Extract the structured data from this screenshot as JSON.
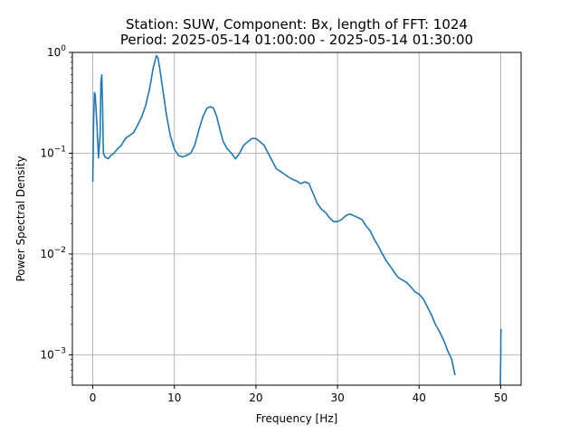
{
  "chart_data": {
    "type": "line",
    "title_line1": "Station: SUW, Component: Bx, length of FFT: 1024",
    "title_line2": "Period: 2025-05-14 01:00:00 - 2025-05-14 01:30:00",
    "xlabel": "Frequency [Hz]",
    "ylabel": "Power Spectral Density",
    "xlim": [
      -2.5,
      52.5
    ],
    "ylim": [
      0.0005,
      1
    ],
    "yscale": "log",
    "grid": true,
    "color": "#1f77b4",
    "x_ticks": [
      {
        "value": 0,
        "label": "0"
      },
      {
        "value": 10,
        "label": "10"
      },
      {
        "value": 20,
        "label": "20"
      },
      {
        "value": 30,
        "label": "30"
      },
      {
        "value": 40,
        "label": "40"
      },
      {
        "value": 50,
        "label": "50"
      }
    ],
    "y_ticks": [
      {
        "value": 1,
        "base": "10",
        "exp": "0"
      },
      {
        "value": 0.1,
        "base": "10",
        "exp": "−1"
      },
      {
        "value": 0.01,
        "base": "10",
        "exp": "−2"
      },
      {
        "value": 0.001,
        "base": "10",
        "exp": "−3"
      }
    ],
    "series": [
      {
        "x": [
          0,
          0.1,
          0.2,
          0.3,
          0.5,
          0.7,
          0.9,
          1.0,
          1.1,
          1.2,
          1.3,
          1.5,
          1.7,
          1.9,
          2.2,
          2.6,
          3.0,
          3.5,
          4.0,
          4.5,
          5.0,
          5.5,
          6.0,
          6.5,
          7.0,
          7.4,
          7.8,
          8.0,
          8.3,
          8.6,
          9.0,
          9.5,
          10.0,
          10.5,
          11.0,
          11.5,
          12.0,
          12.5,
          13.0,
          13.5,
          14.0,
          14.4,
          14.8,
          15.2,
          15.6,
          16.0,
          16.5,
          17.0,
          17.5,
          18.0,
          18.5,
          19.0,
          19.5,
          20.0,
          20.5,
          21.0,
          21.5,
          22.0,
          22.5,
          23.0,
          23.5,
          24.0,
          24.5,
          25.0,
          25.5,
          26.0,
          26.5,
          27.0,
          27.5,
          28.0,
          28.5,
          29.0,
          29.5,
          30.0,
          30.5,
          31.0,
          31.5,
          32.0,
          32.5,
          33.0,
          33.5,
          34.0,
          34.5,
          35.0,
          35.5,
          36.0,
          36.5,
          37.0,
          37.5,
          38.0,
          38.5,
          39.0,
          39.5,
          40.0,
          40.5,
          41.0,
          41.5,
          42.0,
          42.5,
          43.0,
          43.5,
          44.0,
          44.2,
          44.4
        ],
        "y": [
          0.052,
          0.2,
          0.4,
          0.38,
          0.2,
          0.09,
          0.15,
          0.5,
          0.6,
          0.3,
          0.1,
          0.092,
          0.09,
          0.088,
          0.095,
          0.1,
          0.11,
          0.12,
          0.14,
          0.15,
          0.16,
          0.19,
          0.23,
          0.3,
          0.45,
          0.7,
          0.93,
          0.88,
          0.62,
          0.42,
          0.25,
          0.15,
          0.11,
          0.095,
          0.092,
          0.095,
          0.1,
          0.12,
          0.17,
          0.23,
          0.28,
          0.29,
          0.28,
          0.23,
          0.17,
          0.13,
          0.11,
          0.1,
          0.088,
          0.1,
          0.12,
          0.13,
          0.14,
          0.14,
          0.13,
          0.12,
          0.1,
          0.084,
          0.07,
          0.066,
          0.062,
          0.058,
          0.055,
          0.053,
          0.05,
          0.052,
          0.05,
          0.04,
          0.032,
          0.028,
          0.026,
          0.023,
          0.021,
          0.021,
          0.022,
          0.024,
          0.025,
          0.024,
          0.023,
          0.022,
          0.019,
          0.017,
          0.014,
          0.012,
          0.01,
          0.0085,
          0.0075,
          0.0065,
          0.0058,
          0.0055,
          0.0052,
          0.0047,
          0.0042,
          0.004,
          0.0036,
          0.003,
          0.0025,
          0.002,
          0.0017,
          0.0014,
          0.0011,
          0.0009,
          0.00075,
          0.00063
        ]
      },
      {
        "x": [
          49.95,
          50.0,
          50.02,
          50.05
        ],
        "y": [
          0.0005,
          0.0009,
          0.0016,
          0.0018
        ]
      }
    ]
  }
}
